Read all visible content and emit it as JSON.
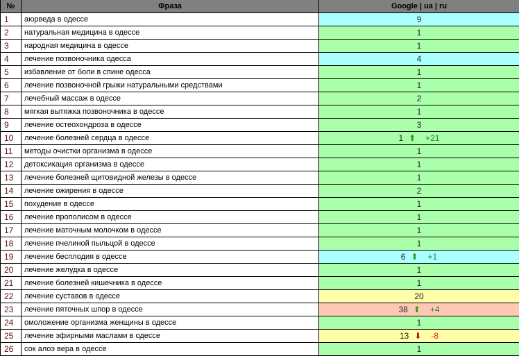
{
  "header": {
    "num": "№",
    "phrase": "Фраза",
    "engine": "Google | ua | ru"
  },
  "colors": {
    "cyan": "#aaffff",
    "green": "#aaffaa",
    "yellow": "#ffffaa",
    "pink": "#ffc8b4",
    "header": "#808080"
  },
  "rows": [
    {
      "n": "1",
      "phrase": "аюрведа в одессе",
      "pos": "9",
      "color": "cyan"
    },
    {
      "n": "2",
      "phrase": "натуральная медицина в одессе",
      "pos": "1",
      "color": "green"
    },
    {
      "n": "3",
      "phrase": "народная медицина в одессе",
      "pos": "1",
      "color": "green"
    },
    {
      "n": "4",
      "phrase": "лечение позвоночника одесса",
      "pos": "4",
      "color": "cyan"
    },
    {
      "n": "5",
      "phrase": "избавление от боли в спине одесса",
      "pos": "1",
      "color": "green"
    },
    {
      "n": "6",
      "phrase": "лечение позвоночной грыжи натуральными средствами",
      "pos": "1",
      "color": "green"
    },
    {
      "n": "7",
      "phrase": "лечебный массаж в одессе",
      "pos": "2",
      "color": "green"
    },
    {
      "n": "8",
      "phrase": "мягкая вытяжка позвоночника в одессе",
      "pos": "1",
      "color": "green"
    },
    {
      "n": "9",
      "phrase": "лечение остеохондроза в одессе",
      "pos": "3",
      "color": "green"
    },
    {
      "n": "10",
      "phrase": "лечение болезней сердца в одессе",
      "pos": "1",
      "color": "green",
      "trend": "up",
      "delta": "+21"
    },
    {
      "n": "11",
      "phrase": "методы очистки организма в одессе",
      "pos": "1",
      "color": "green"
    },
    {
      "n": "12",
      "phrase": "детоксикация организма в одессе",
      "pos": "1",
      "color": "green"
    },
    {
      "n": "13",
      "phrase": "лечение болезней щитовидной железы в одессе",
      "pos": "1",
      "color": "green"
    },
    {
      "n": "14",
      "phrase": "лечение ожирения в одессе",
      "pos": "2",
      "color": "green"
    },
    {
      "n": "15",
      "phrase": "похудение в одессе",
      "pos": "1",
      "color": "green"
    },
    {
      "n": "16",
      "phrase": "лечение прополисом в одессе",
      "pos": "1",
      "color": "green"
    },
    {
      "n": "17",
      "phrase": "лечение маточным молочком в одессе",
      "pos": "1",
      "color": "green"
    },
    {
      "n": "18",
      "phrase": "лечение пчелиной пыльцой в одессе",
      "pos": "1",
      "color": "green"
    },
    {
      "n": "19",
      "phrase": "лечение бесплодия в одессе",
      "pos": "6",
      "color": "cyan",
      "trend": "up",
      "delta": "+1"
    },
    {
      "n": "20",
      "phrase": "лечение желудка в одессе",
      "pos": "1",
      "color": "green"
    },
    {
      "n": "21",
      "phrase": "лечение болезней кишечника в одессе",
      "pos": "1",
      "color": "green"
    },
    {
      "n": "22",
      "phrase": "лечение суставов в одессе",
      "pos": "20",
      "color": "yellow"
    },
    {
      "n": "23",
      "phrase": "лечение пяточных шпор в одессе",
      "pos": "38",
      "color": "pink",
      "trend": "up",
      "delta": "+4"
    },
    {
      "n": "24",
      "phrase": "омоложение организма женщины в одессе",
      "pos": "1",
      "color": "green"
    },
    {
      "n": "25",
      "phrase": "лечение эфирными маслами в одессе",
      "pos": "13",
      "color": "yellow",
      "trend": "down",
      "delta": "-8"
    },
    {
      "n": "26",
      "phrase": "сок алоэ вера в одессе",
      "pos": "1",
      "color": "green"
    }
  ]
}
